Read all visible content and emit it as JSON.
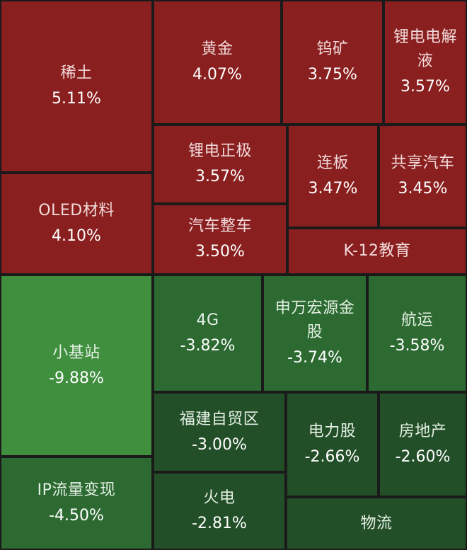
{
  "chart_data": {
    "type": "treemap",
    "colors": {
      "up": "#8a1f1f",
      "down_strong": "#3f8f3f",
      "down_mid": "#2c6a31",
      "down_light": "#234f28"
    },
    "tiles": [
      {
        "id": "xitu",
        "label": "稀土",
        "value": "5.11%",
        "change": 5.11
      },
      {
        "id": "oled",
        "label": "OLED材料",
        "value": "4.10%",
        "change": 4.1
      },
      {
        "id": "huangjin",
        "label": "黄金",
        "value": "4.07%",
        "change": 4.07
      },
      {
        "id": "wukuang",
        "label": "钨矿",
        "value": "3.75%",
        "change": 3.75
      },
      {
        "id": "lidian-jieyi",
        "label": "锂电电解液",
        "value": "3.57%",
        "change": 3.57
      },
      {
        "id": "lidian-zhengji",
        "label": "锂电正极",
        "value": "3.57%",
        "change": 3.57
      },
      {
        "id": "lianban",
        "label": "连板",
        "value": "3.47%",
        "change": 3.47
      },
      {
        "id": "gongxiang",
        "label": "共享汽车",
        "value": "3.45%",
        "change": 3.45
      },
      {
        "id": "qiche",
        "label": "汽车整车",
        "value": "3.50%",
        "change": 3.5
      },
      {
        "id": "k12",
        "label": "K-12教育",
        "value": "",
        "change": null
      },
      {
        "id": "xiaojizhan",
        "label": "小基站",
        "value": "-9.88%",
        "change": -9.88
      },
      {
        "id": "4g",
        "label": "4G",
        "value": "-3.82%",
        "change": -3.82
      },
      {
        "id": "shenwan",
        "label": "申万宏源金股",
        "value": "-3.74%",
        "change": -3.74
      },
      {
        "id": "hangyun",
        "label": "航运",
        "value": "-3.58%",
        "change": -3.58
      },
      {
        "id": "ip",
        "label": "IP流量变现",
        "value": "-4.50%",
        "change": -4.5
      },
      {
        "id": "fujian",
        "label": "福建自贸区",
        "value": "-3.00%",
        "change": -3.0
      },
      {
        "id": "dianli",
        "label": "电力股",
        "value": "-2.66%",
        "change": -2.66
      },
      {
        "id": "fangdichan",
        "label": "房地产",
        "value": "-2.60%",
        "change": -2.6
      },
      {
        "id": "huodian",
        "label": "火电",
        "value": "-2.81%",
        "change": -2.81
      },
      {
        "id": "wuliu",
        "label": "物流",
        "value": "",
        "change": null
      }
    ]
  }
}
